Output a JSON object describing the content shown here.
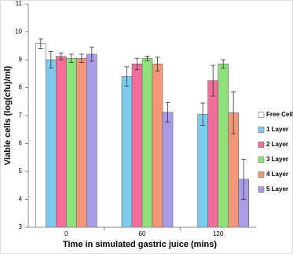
{
  "chart_data": {
    "type": "bar",
    "x_label": "Time in simulated gastric juice (mins)",
    "y_label": "Viable cells (log(cfu)/ml)",
    "categories": [
      "0",
      "60",
      "120"
    ],
    "series": [
      {
        "name": "Free Cells",
        "color": "#ffffff",
        "values": [
          9.58,
          null,
          null
        ],
        "errors": [
          0.17,
          null,
          null
        ]
      },
      {
        "name": "1 Layer",
        "color": "#7ecbf0",
        "values": [
          9.0,
          8.4,
          7.05
        ],
        "errors": [
          0.3,
          0.35,
          0.4
        ]
      },
      {
        "name": "2 Layer",
        "color": "#f26d99",
        "values": [
          9.12,
          8.85,
          8.25
        ],
        "errors": [
          0.12,
          0.2,
          0.55
        ]
      },
      {
        "name": "3 Layer",
        "color": "#8fe07a",
        "values": [
          9.05,
          9.05,
          8.85
        ],
        "errors": [
          0.15,
          0.08,
          0.15
        ]
      },
      {
        "name": "4 Layer",
        "color": "#f7977a",
        "values": [
          9.05,
          8.85,
          7.1
        ],
        "errors": [
          0.15,
          0.25,
          0.75
        ]
      },
      {
        "name": "5 Layer",
        "color": "#a99be8",
        "values": [
          9.2,
          7.12,
          4.72
        ],
        "errors": [
          0.25,
          0.35,
          0.72
        ]
      }
    ],
    "ylim": [
      3,
      11
    ],
    "yticks": [
      3,
      4,
      5,
      6,
      7,
      8,
      9,
      10,
      11
    ],
    "grid": false
  }
}
